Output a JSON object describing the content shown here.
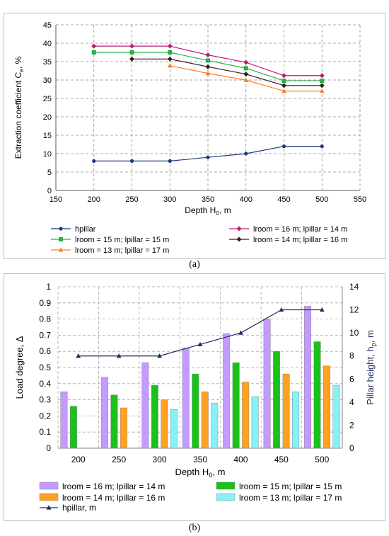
{
  "chart_data": [
    {
      "type": "line",
      "caption": "(a)",
      "xlabel_main": "Depth H",
      "xlabel_sub": "0",
      "xlabel_unit": ", m",
      "ylabel_main": "Extraction coefficient C",
      "ylabel_sub": "e",
      "ylabel_unit": ", %",
      "xlim": [
        150,
        550
      ],
      "ylim": [
        0,
        45
      ],
      "xticks": [
        150,
        200,
        250,
        300,
        350,
        400,
        450,
        500,
        550
      ],
      "yticks": [
        0,
        5,
        10,
        15,
        20,
        25,
        30,
        35,
        40,
        45
      ],
      "grid": true,
      "legend_position": "bottom",
      "series": [
        {
          "name": "hpillar",
          "color": "#1f3a7a",
          "marker": "circle",
          "x": [
            200,
            250,
            300,
            350,
            400,
            450,
            500
          ],
          "y": [
            8,
            8,
            8,
            9,
            10,
            12,
            12
          ]
        },
        {
          "name": "lroom = 16 m; lpillar = 14 m",
          "color": "#c0187a",
          "marker": "diamond",
          "x": [
            200,
            250,
            300,
            350,
            400,
            450,
            500
          ],
          "y": [
            39.2,
            39.2,
            39.2,
            36.8,
            34.8,
            31.2,
            31.2
          ]
        },
        {
          "name": "lroom = 15 m; lpillar = 15 m",
          "color": "#22b14c",
          "marker": "square",
          "x": [
            200,
            250,
            300,
            350,
            400,
            450,
            500
          ],
          "y": [
            37.5,
            37.5,
            37.5,
            35.3,
            33.2,
            29.8,
            29.8
          ]
        },
        {
          "name": "lroom = 14 m; lpillar = 16 m",
          "color": "#3a1a1a",
          "marker": "diamond",
          "x": [
            250,
            300,
            350,
            400,
            450,
            500
          ],
          "y": [
            35.7,
            35.7,
            33.6,
            31.6,
            28.5,
            28.5
          ]
        },
        {
          "name": "lroom = 13 m; lpillar = 17 m",
          "color": "#ff7f27",
          "marker": "triangle",
          "x": [
            300,
            350,
            400,
            450,
            500
          ],
          "y": [
            33.9,
            31.8,
            30,
            27,
            27
          ]
        }
      ]
    },
    {
      "type": "bar",
      "caption": "(b)",
      "xlabel_main": "Depth H",
      "xlabel_sub": "0",
      "xlabel_unit": ", m",
      "ylabel_main": "Load degree, Δ",
      "y2label_main": "Pillar height, h",
      "y2label_sub": "p",
      "y2label_unit": ", m",
      "categories": [
        "200",
        "250",
        "300",
        "350",
        "400",
        "450",
        "500"
      ],
      "ylim": [
        0,
        1
      ],
      "yticks": [
        "0",
        "0.1",
        "0.2",
        "0.3",
        "0.4",
        "0.5",
        "0.6",
        "0.7",
        "0.8",
        "0.9",
        "1"
      ],
      "y2lim": [
        0,
        14
      ],
      "y2ticks": [
        "0",
        "2",
        "4",
        "6",
        "8",
        "10",
        "12",
        "14"
      ],
      "grid": true,
      "legend_position": "bottom",
      "series": [
        {
          "name": "lroom = 16 m; lpillar = 14 m",
          "color": "#c39bff",
          "values": [
            0.35,
            0.44,
            0.53,
            0.62,
            0.71,
            0.8,
            0.88
          ]
        },
        {
          "name": "lroom = 15 m; lpillar = 15 m",
          "color": "#19c219",
          "values": [
            0.26,
            0.33,
            0.39,
            0.46,
            0.53,
            0.6,
            0.66
          ]
        },
        {
          "name": "lroom = 14 m; lpillar = 16 m",
          "color": "#ffa021",
          "values": [
            null,
            0.25,
            0.3,
            0.35,
            0.41,
            0.46,
            0.51
          ]
        },
        {
          "name": "lroom = 13 m; lpillar = 17 m",
          "color": "#85f2f7",
          "values": [
            null,
            null,
            0.24,
            0.28,
            0.32,
            0.35,
            0.39
          ]
        }
      ],
      "line_series": {
        "name": "hpillar, m",
        "color": "#1f2a5c",
        "axis": "right",
        "values": [
          8,
          8,
          8,
          9,
          10,
          12,
          12
        ]
      }
    }
  ]
}
